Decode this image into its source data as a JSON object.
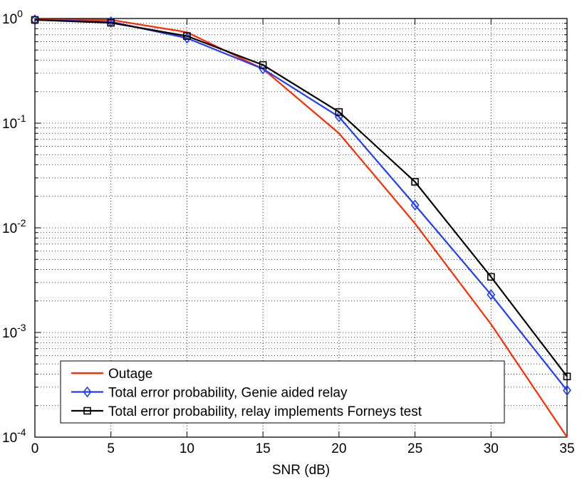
{
  "chart_data": {
    "type": "line",
    "title": "",
    "xlabel": "SNR (dB)",
    "ylabel": "",
    "yscale": "log",
    "xlim": [
      0,
      35
    ],
    "ylim": [
      0.0001,
      1
    ],
    "grid": true,
    "legend_position": "bottom-left",
    "x_ticks": [
      0,
      5,
      10,
      15,
      20,
      25,
      30,
      35
    ],
    "x_tick_labels": [
      "0",
      "5",
      "10",
      "15",
      "20",
      "25",
      "30",
      "35"
    ],
    "y_ticks": [
      {
        "value": 1,
        "base": "10",
        "exponent": "0"
      },
      {
        "value": 0.1,
        "base": "10",
        "exponent": "-1"
      },
      {
        "value": 0.01,
        "base": "10",
        "exponent": "-2"
      },
      {
        "value": 0.001,
        "base": "10",
        "exponent": "-3"
      },
      {
        "value": 0.0001,
        "base": "10",
        "exponent": "-4"
      }
    ],
    "x": [
      0,
      5,
      10,
      15,
      20,
      25,
      30,
      35
    ],
    "series": [
      {
        "name": "Outage",
        "color": "#ff2a00",
        "marker": "none",
        "values": [
          0.98,
          0.97,
          0.74,
          0.33,
          0.08,
          0.011,
          0.0012,
          0.0001
        ]
      },
      {
        "name": "Total error probability, Genie aided relay",
        "color": "#1f3dff",
        "marker": "diamond",
        "values": [
          0.97,
          0.93,
          0.65,
          0.33,
          0.115,
          0.0165,
          0.0023,
          0.00028
        ]
      },
      {
        "name": "Total error probability, relay implements Forneys test",
        "color": "#000000",
        "marker": "square",
        "values": [
          0.97,
          0.91,
          0.68,
          0.36,
          0.128,
          0.0275,
          0.0034,
          0.00038
        ]
      }
    ]
  }
}
